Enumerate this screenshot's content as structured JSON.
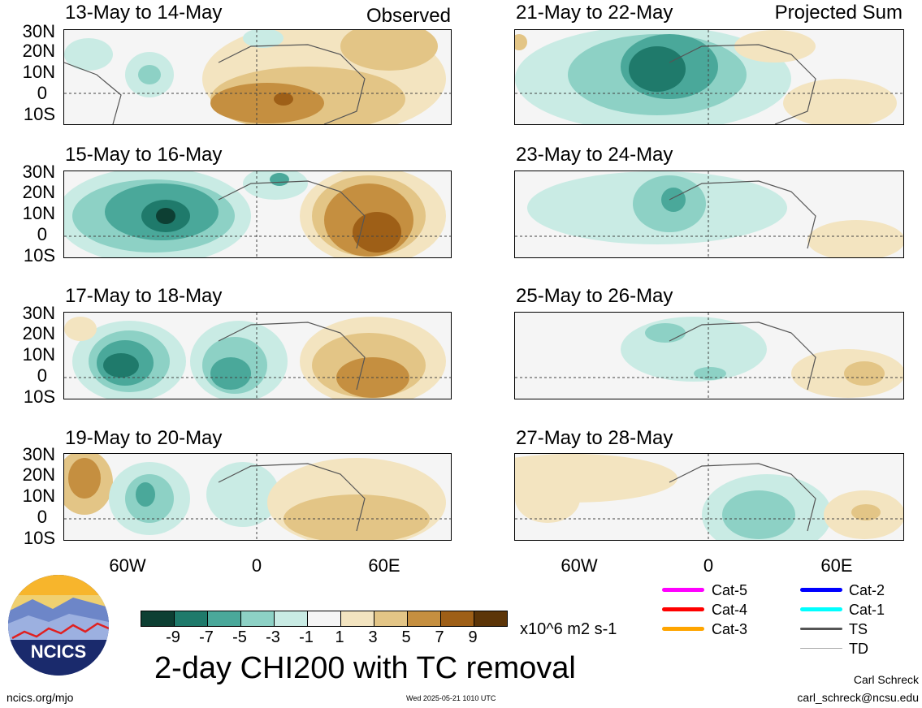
{
  "observed_label": "Observed",
  "projected_label": "Projected Sum",
  "left_panels": [
    {
      "title": "13-May to 14-May"
    },
    {
      "title": "15-May to 16-May"
    },
    {
      "title": "17-May to 18-May"
    },
    {
      "title": "19-May to 20-May"
    }
  ],
  "right_panels": [
    {
      "title": "21-May to 22-May"
    },
    {
      "title": "23-May to 24-May"
    },
    {
      "title": "25-May to 26-May"
    },
    {
      "title": "27-May to 28-May"
    }
  ],
  "lat_labels": [
    "30N",
    "20N",
    "10N",
    "0",
    "10S"
  ],
  "lon_labels": [
    "60W",
    "0",
    "60E"
  ],
  "colorbar": {
    "colors": [
      "#0d3f33",
      "#1f7a6b",
      "#4aa89a",
      "#8dd1c5",
      "#c9ebe4",
      "#f5f5f5",
      "#f3e4c0",
      "#e3c586",
      "#c58f40",
      "#9e5f17",
      "#5c3508"
    ],
    "ticks": [
      "-9",
      "-7",
      "-5",
      "-3",
      "-1",
      "1",
      "3",
      "5",
      "7",
      "9"
    ],
    "units": "x10^6 m2 s-1"
  },
  "main_title": "2-day CHI200 with TC removal",
  "legend": [
    {
      "label": "Cat-5",
      "color": "#ff00ff"
    },
    {
      "label": "Cat-4",
      "color": "#ff0000"
    },
    {
      "label": "Cat-3",
      "color": "#ffa500"
    },
    {
      "label": "Cat-2",
      "color": "#0000ff"
    },
    {
      "label": "Cat-1",
      "color": "#00ffff"
    },
    {
      "label": "TS",
      "color": "#555555"
    },
    {
      "label": "TD",
      "color": "#aaaaaa"
    }
  ],
  "logo_text": "NCICS",
  "footer_left": "ncics.org/mjo",
  "footer_center": "Wed 2025-05-21 1010 UTC",
  "author_name": "Carl Schreck",
  "author_email": "carl_schreck@ncsu.edu"
}
